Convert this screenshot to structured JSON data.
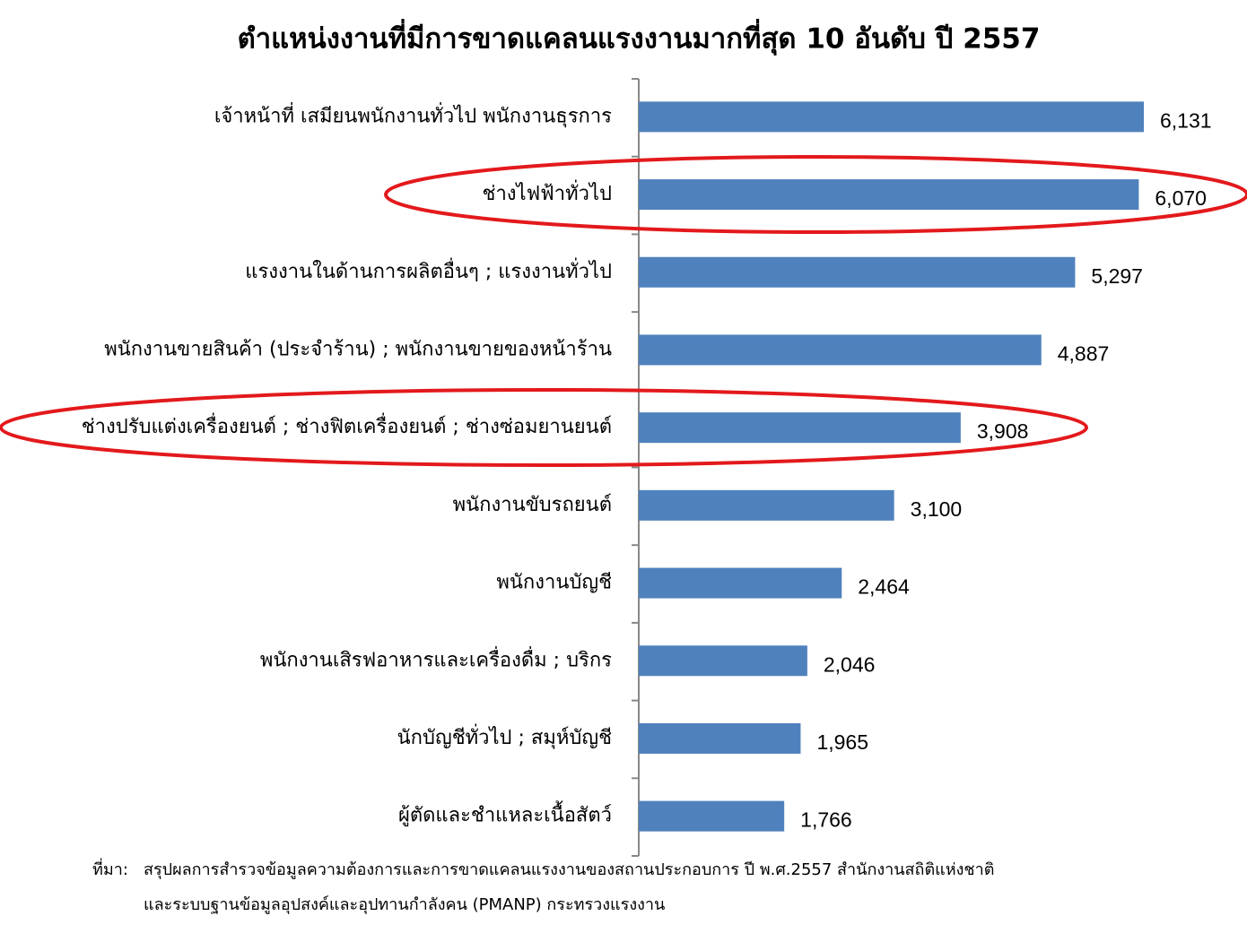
{
  "chart_data": {
    "type": "bar",
    "orientation": "horizontal",
    "title": "ตำแหน่งงานที่มีการขาดแคลนแรงงานมากที่สุด 10 อันดับ ปี 2557",
    "categories": [
      "เจ้าหน้าที่ เสมียนพนักงานทั่วไป พนักงานธุรการ",
      "ช่างไฟฟ้าทั่วไป",
      "แรงงานในด้านการผลิตอื่นๆ ; แรงงานทั่วไป",
      "พนักงานขายสินค้า  (ประจำร้าน) ; พนักงานขายของหน้าร้าน",
      "ช่างปรับแต่งเครื่องยนต์ ; ช่างฟิตเครื่องยนต์ ; ช่างซ่อมยานยนต์",
      "พนักงานขับรถยนต์",
      "พนักงานบัญชี",
      "พนักงานเสิรฟอาหารและเครื่องดื่ม  ;  บริกร",
      "นักบัญชีทั่วไป ;  สมุห์บัญชี",
      "ผู้ตัดและชำแหละเนื้อสัตว์"
    ],
    "values": [
      6131,
      6070,
      5297,
      4887,
      3908,
      3100,
      2464,
      2046,
      1965,
      1766
    ],
    "value_labels": [
      "6,131",
      "6,070",
      "5,297",
      "4,887",
      "3,908",
      "3,100",
      "2,464",
      "2,046",
      "1,965",
      "1,766"
    ],
    "color": "#4f81bd",
    "source": {
      "label": "ที่มา:",
      "lines": [
        "สรุปผลการสำรวจข้อมูลความต้องการและการขาดแคลนแรงงานของสถานประกอบการ ปี พ.ศ.2557 สำนักงานสถิติแห่งชาติ",
        "และระบบฐานข้อมูลอุปสงค์และอุปทานกำลังคน (PMANP) กระทรวงแรงงาน"
      ]
    }
  }
}
